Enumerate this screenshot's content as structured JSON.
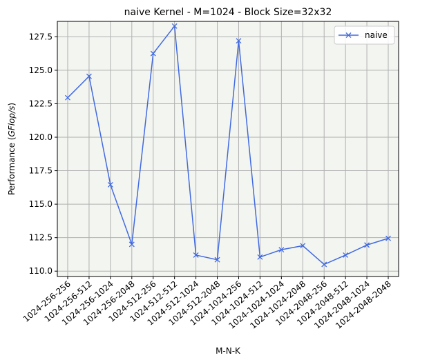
{
  "chart_data": {
    "type": "line",
    "title": "naive Kernel - M=1024 - Block Size=32x32",
    "xlabel": "M-N-K",
    "ylabel_prefix": "Performance (",
    "ylabel_unit": "GFlop/s",
    "ylabel_suffix": ")",
    "categories": [
      "1024-256-256",
      "1024-256-512",
      "1024-256-1024",
      "1024-256-2048",
      "1024-512-256",
      "1024-512-512",
      "1024-512-1024",
      "1024-512-2048",
      "1024-1024-256",
      "1024-1024-512",
      "1024-1024-1024",
      "1024-1024-2048",
      "1024-2048-256",
      "1024-2048-512",
      "1024-2048-1024",
      "1024-2048-2048"
    ],
    "series": [
      {
        "name": "naive",
        "color": "#4169e1",
        "marker": "x",
        "values": [
          122.95,
          124.55,
          116.45,
          112.0,
          126.25,
          128.3,
          111.2,
          110.85,
          127.2,
          111.05,
          111.6,
          111.9,
          110.5,
          111.2,
          111.95,
          112.45
        ]
      }
    ],
    "ylim": [
      109.6,
      128.65
    ],
    "yticks": [
      110.0,
      112.5,
      115.0,
      117.5,
      120.0,
      122.5,
      125.0,
      127.5
    ],
    "ytick_labels": [
      "110.0",
      "112.5",
      "115.0",
      "117.5",
      "120.0",
      "122.5",
      "125.0",
      "127.5"
    ],
    "grid": true,
    "plot_background": "#f2f5f0",
    "legend_position": "top-right"
  }
}
